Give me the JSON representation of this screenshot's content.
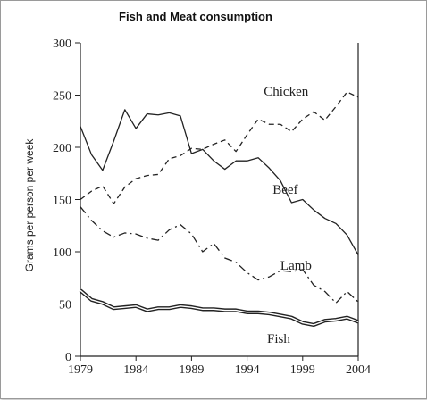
{
  "chart_data": {
    "type": "line",
    "title": "Fish and Meat consumption",
    "xlabel": "",
    "ylabel": "Grams per person per week",
    "xlim": [
      1979,
      2004
    ],
    "ylim": [
      0,
      300
    ],
    "x_ticks": [
      1979,
      1984,
      1989,
      1994,
      1999,
      2004
    ],
    "y_ticks": [
      0,
      50,
      100,
      150,
      200,
      250,
      300
    ],
    "x_tick_labels": [
      "1979",
      "1984",
      "1989",
      "1994",
      "1999",
      "2004"
    ],
    "y_tick_labels": [
      "0",
      "50",
      "100",
      "150",
      "200",
      "250",
      "300"
    ],
    "grid": false,
    "legend": "none (series labelled directly on the lines)",
    "x": [
      1979,
      1980,
      1981,
      1982,
      1983,
      1984,
      1985,
      1986,
      1987,
      1988,
      1989,
      1990,
      1991,
      1992,
      1993,
      1994,
      1995,
      1996,
      1997,
      1998,
      1999,
      2000,
      2001,
      2002,
      2003,
      2004
    ],
    "series": [
      {
        "name": "Chicken",
        "line_style": "dashed",
        "label_at": [
          1995.5,
          254
        ],
        "values": [
          150,
          158,
          163,
          146,
          162,
          170,
          173,
          174,
          189,
          192,
          199,
          198,
          203,
          207,
          196,
          212,
          227,
          222,
          222,
          215,
          227,
          234,
          226,
          239,
          253,
          248
        ]
      },
      {
        "name": "Beef",
        "line_style": "solid",
        "label_at": [
          1996.3,
          160
        ],
        "values": [
          220,
          193,
          178,
          206,
          236,
          218,
          232,
          231,
          233,
          230,
          194,
          198,
          187,
          179,
          187,
          187,
          190,
          180,
          168,
          147,
          150,
          140,
          132,
          127,
          116,
          97
        ]
      },
      {
        "name": "Lamb",
        "line_style": "dash-dot",
        "label_at": [
          1997,
          87
        ],
        "values": [
          143,
          130,
          120,
          114,
          118,
          117,
          113,
          111,
          121,
          126,
          117,
          100,
          108,
          94,
          90,
          80,
          73,
          76,
          82,
          81,
          83,
          68,
          62,
          51,
          62,
          52
        ]
      },
      {
        "name": "Fish",
        "line_style": "double",
        "label_at": [
          1995.8,
          17
        ],
        "values": [
          63,
          54,
          51,
          46,
          47,
          48,
          44,
          46,
          46,
          48,
          47,
          45,
          45,
          44,
          44,
          42,
          42,
          41,
          39,
          37,
          32,
          30,
          34,
          35,
          37,
          33
        ]
      }
    ]
  }
}
